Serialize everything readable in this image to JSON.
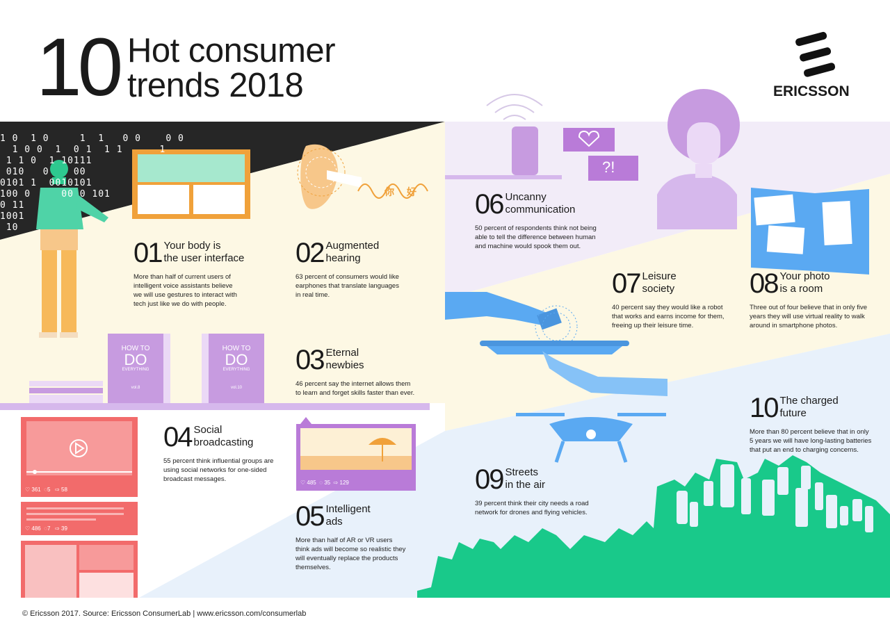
{
  "header": {
    "number": "10",
    "title_line1": "Hot consumer",
    "title_line2": "trends 2018"
  },
  "brand": {
    "name": "ERICSSON"
  },
  "binary_text": "1 0  1 0     1  1   0 0    0 0\n  1 0 0  1  0 1  1 1      1\n 1 1 0  1 10111\n 010   0    00\n0101 1  0010101\n100 0     00 0 101\n0 11\n1001\n 10",
  "trends": [
    {
      "num": "01",
      "title1": "Your body is",
      "title2": "the user interface",
      "desc": [
        "More than half of current users of",
        "intelligent voice assistants believe",
        "we will use gestures to interact with",
        "tech just like we do with people."
      ]
    },
    {
      "num": "02",
      "title1": "Augmented",
      "title2": "hearing",
      "desc": [
        "63 percent of consumers would like",
        "earphones that translate languages",
        "in real time."
      ]
    },
    {
      "num": "03",
      "title1": "Eternal",
      "title2": "newbies",
      "desc": [
        "46 percent say the internet allows them",
        "to learn and forget skills faster than ever."
      ]
    },
    {
      "num": "04",
      "title1": "Social",
      "title2": "broadcasting",
      "desc": [
        "55 percent think influential groups are",
        "using social networks for one-sided",
        "broadcast messages."
      ]
    },
    {
      "num": "05",
      "title1": "Intelligent",
      "title2": "ads",
      "desc": [
        "More than half of AR or VR users",
        "think ads will become so realistic they",
        "will eventually replace the products",
        "themselves."
      ]
    },
    {
      "num": "06",
      "title1": "Uncanny",
      "title2": "communication",
      "desc": [
        "50 percent of respondents think not being",
        "able to tell the difference between human",
        "and machine would spook them out."
      ]
    },
    {
      "num": "07",
      "title1": "Leisure",
      "title2": "society",
      "desc": [
        "40 percent say they would like a robot",
        "that works and earns income for them,",
        "freeing up their leisure time."
      ]
    },
    {
      "num": "08",
      "title1": "Your photo",
      "title2": "is a room",
      "desc": [
        "Three out of four believe that in only five",
        "years they will use virtual reality to walk",
        "around in smartphone photos."
      ]
    },
    {
      "num": "09",
      "title1": "Streets",
      "title2": "in the air",
      "desc": [
        "39 percent think their city needs a road",
        "network for drones and flying vehicles."
      ]
    },
    {
      "num": "10",
      "title1": "The charged",
      "title2": "future",
      "desc": [
        "More than 80 percent believe that in only",
        "5 years we will have long-lasting batteries",
        "that put an end to charging concerns."
      ]
    }
  ],
  "books": [
    {
      "line1": "HOW TO",
      "line2": "DO",
      "line3": "EVERYTHING",
      "vol": "vol.8"
    },
    {
      "line1": "HOW TO",
      "line2": "DO",
      "line3": "EVERYTHING",
      "vol": "vol.10"
    }
  ],
  "translation_glyphs": [
    "你",
    "好"
  ],
  "chat_bubbles": {
    "question": "?!"
  },
  "social_stats": {
    "card1": {
      "likes": "361",
      "comments": "5",
      "shares": "58"
    },
    "card2": {
      "likes": "486",
      "comments": "7",
      "shares": "39"
    },
    "ad_card": {
      "likes": "485",
      "comments": "35",
      "shares": "129"
    }
  },
  "footer": "© Ericsson 2017. Source: Ericsson ConsumerLab  |  www.ericsson.com/consumerlab",
  "colors": {
    "dark_band": "#2b2b2b",
    "cream": "#fdf8e4",
    "lavender": "#f1ecf8",
    "purple": "#c79be0",
    "light_blue": "#e7f0fb",
    "blue": "#5aa9f2",
    "green": "#19c98a",
    "coral": "#f26b6b",
    "orange": "#f0a13a",
    "mint": "#9fe6c8"
  }
}
